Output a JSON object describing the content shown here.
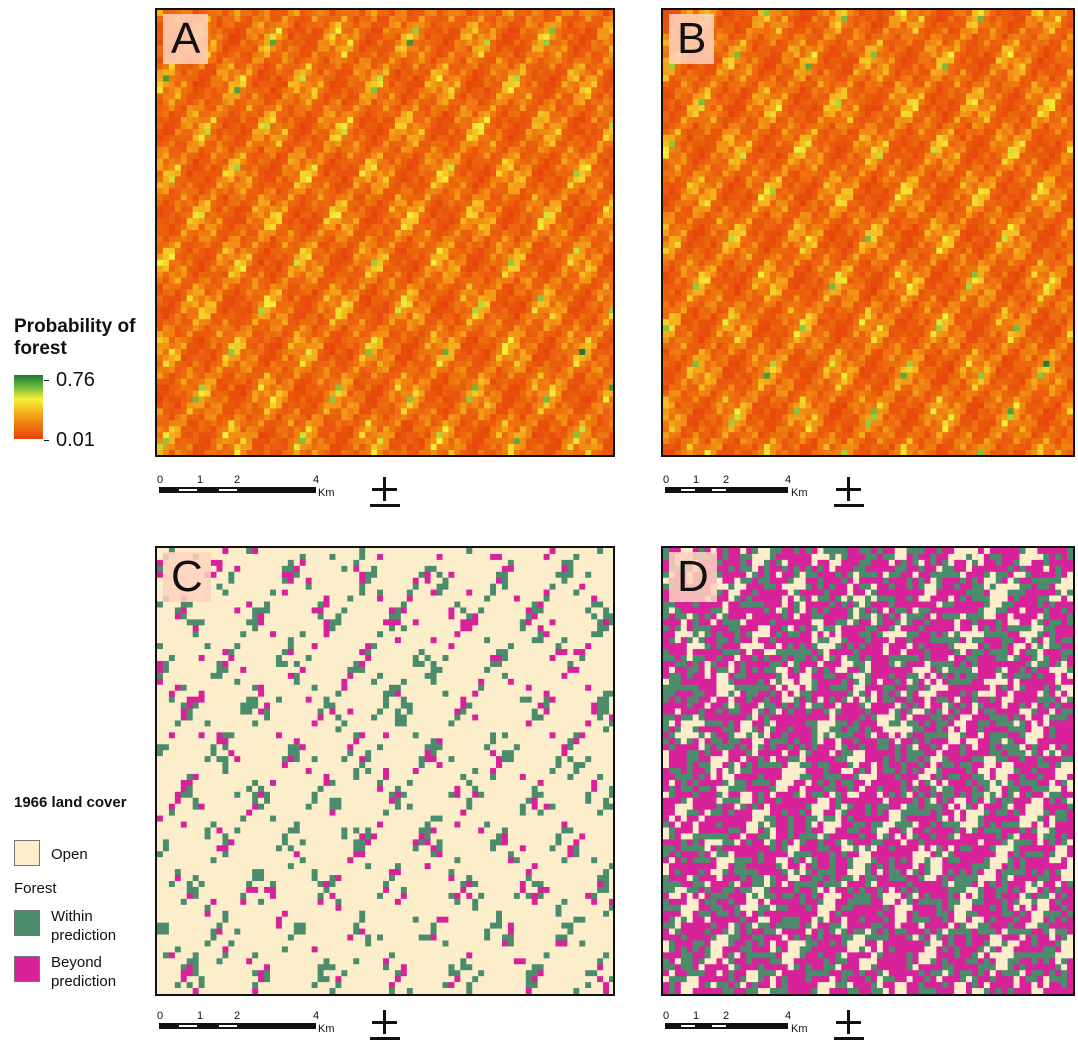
{
  "colors": {
    "prob_high": "#1a7a3a",
    "prob_mid": "#f5f23a",
    "prob_low": "#e6420a",
    "open": "#fdeecb",
    "forest_within": "#4a8c6b",
    "forest_beyond": "#d7229a"
  },
  "panels": [
    {
      "label": "A",
      "kind": "probability"
    },
    {
      "label": "B",
      "kind": "probability"
    },
    {
      "label": "C",
      "kind": "landcover",
      "forest_share": 0.2,
      "beyond_share": 0.35
    },
    {
      "label": "D",
      "kind": "landcover",
      "forest_share": 0.6,
      "beyond_share": 0.6
    }
  ],
  "scalebar": {
    "ticks": [
      "0",
      "1",
      "2",
      "4"
    ],
    "unit": "Km"
  },
  "legend_probability": {
    "title": "Probability of forest",
    "max": "0.76",
    "min": "0.01"
  },
  "legend_landcover": {
    "title": "1966 land cover",
    "open": "Open",
    "forest_header": "Forest",
    "within": "Within prediction",
    "beyond": "Beyond prediction"
  }
}
